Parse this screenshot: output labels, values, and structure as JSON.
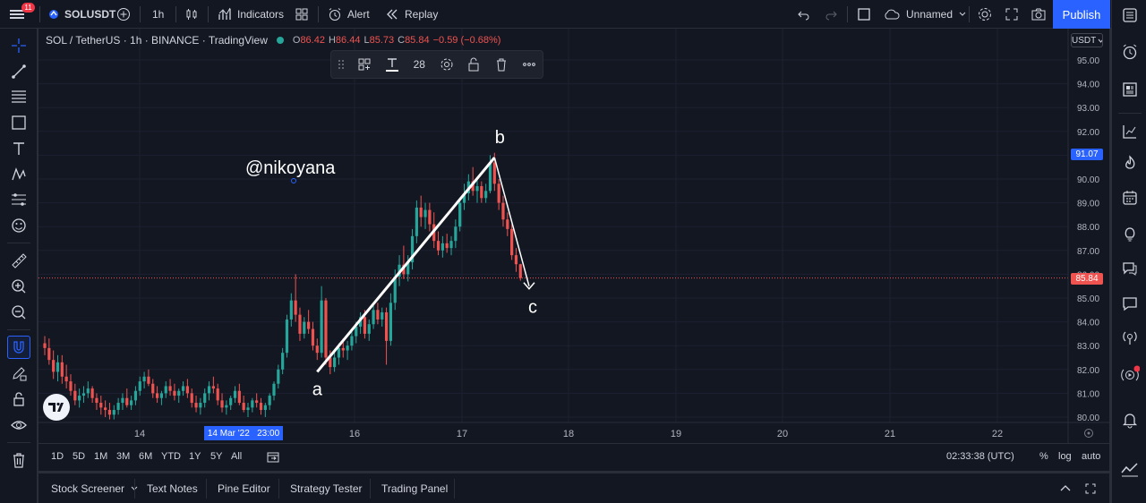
{
  "header": {
    "menu_badge": "11",
    "symbol": "SOLUSDT",
    "interval": "1h",
    "indicators_label": "Indicators",
    "alert_label": "Alert",
    "replay_label": "Replay",
    "layout_name": "Unnamed",
    "publish_label": "Publish"
  },
  "legend": {
    "title": "SOL / TetherUS · 1h · BINANCE · TradingView",
    "open_key": "O",
    "open": "86.42",
    "high_key": "H",
    "high": "86.44",
    "low_key": "L",
    "low": "85.73",
    "close_key": "C",
    "close": "85.84",
    "change": "−0.59 (−0.68%)"
  },
  "drawing_toolbar": {
    "font_size": "28"
  },
  "price_axis": {
    "currency": "USDT",
    "ticks": [
      "95.00",
      "94.00",
      "93.00",
      "92.00",
      "91.00",
      "90.00",
      "89.00",
      "88.00",
      "87.00",
      "86.00",
      "85.00",
      "84.00",
      "83.00",
      "82.00",
      "81.00",
      "80.00"
    ],
    "high_tag": "91.07",
    "last_tag": "85.84"
  },
  "time_axis": {
    "ticks": [
      "14",
      "16",
      "17",
      "18",
      "19",
      "20",
      "21",
      "22"
    ],
    "crosshair_label": "14 Mar '22   23:00"
  },
  "annotations": {
    "watermark_text": "@nikoyana",
    "label_a": "a",
    "label_b": "b",
    "label_c": "c"
  },
  "timeframes": [
    "1D",
    "5D",
    "1M",
    "3M",
    "6M",
    "YTD",
    "1Y",
    "5Y",
    "All"
  ],
  "clock": "02:33:38 (UTC)",
  "scale_options": {
    "percent": "%",
    "log": "log",
    "auto": "auto"
  },
  "bottom_tabs": [
    "Stock Screener",
    "Text Notes",
    "Pine Editor",
    "Strategy Tester",
    "Trading Panel"
  ],
  "colors": {
    "up": "#26a69a",
    "down": "#ef5350",
    "accent": "#2962ff",
    "background": "#131722"
  },
  "chart_data": {
    "type": "candlestick",
    "symbol": "SOLUSDT",
    "interval": "1h",
    "ylim": [
      79.8,
      95.5
    ],
    "candles": [
      [
        83.1,
        83.4,
        82.6,
        82.9
      ],
      [
        82.9,
        83.3,
        82.2,
        82.4
      ],
      [
        82.4,
        82.8,
        81.6,
        81.9
      ],
      [
        81.9,
        82.6,
        81.5,
        82.3
      ],
      [
        82.3,
        82.6,
        81.4,
        81.7
      ],
      [
        81.7,
        82.2,
        81.2,
        81.5
      ],
      [
        81.5,
        81.8,
        80.9,
        81.1
      ],
      [
        81.1,
        81.4,
        80.5,
        80.7
      ],
      [
        80.7,
        81.2,
        80.4,
        80.9
      ],
      [
        80.9,
        81.3,
        80.6,
        81.0
      ],
      [
        81.0,
        81.5,
        80.8,
        81.2
      ],
      [
        81.2,
        81.3,
        80.6,
        80.8
      ],
      [
        80.8,
        81.0,
        80.3,
        80.6
      ],
      [
        80.6,
        80.9,
        80.1,
        80.4
      ],
      [
        80.4,
        80.7,
        80.0,
        80.3
      ],
      [
        80.3,
        80.6,
        79.9,
        80.1
      ],
      [
        80.1,
        80.5,
        79.9,
        80.3
      ],
      [
        80.3,
        80.8,
        80.1,
        80.6
      ],
      [
        80.6,
        81.0,
        80.3,
        80.8
      ],
      [
        80.8,
        81.2,
        80.4,
        80.5
      ],
      [
        80.5,
        80.9,
        80.3,
        80.7
      ],
      [
        80.7,
        81.3,
        80.5,
        81.1
      ],
      [
        81.1,
        81.7,
        80.9,
        81.5
      ],
      [
        81.5,
        81.9,
        81.2,
        81.7
      ],
      [
        81.7,
        82.0,
        81.3,
        81.4
      ],
      [
        81.4,
        81.6,
        80.8,
        81.0
      ],
      [
        81.0,
        81.3,
        80.6,
        80.8
      ],
      [
        80.8,
        81.1,
        80.5,
        81.0
      ],
      [
        81.0,
        81.5,
        80.8,
        81.3
      ],
      [
        81.3,
        81.6,
        80.9,
        81.1
      ],
      [
        81.1,
        81.4,
        80.7,
        80.9
      ],
      [
        80.9,
        81.2,
        80.6,
        81.1
      ],
      [
        81.1,
        81.5,
        80.9,
        81.3
      ],
      [
        81.3,
        81.6,
        80.8,
        81.0
      ],
      [
        81.0,
        81.2,
        80.4,
        80.6
      ],
      [
        80.6,
        80.9,
        80.2,
        80.4
      ],
      [
        80.4,
        80.8,
        80.1,
        80.6
      ],
      [
        80.6,
        81.2,
        80.4,
        81.0
      ],
      [
        81.0,
        81.5,
        80.7,
        81.3
      ],
      [
        81.3,
        81.7,
        81.0,
        81.2
      ],
      [
        81.2,
        81.4,
        80.5,
        80.7
      ],
      [
        80.7,
        81.0,
        80.2,
        80.4
      ],
      [
        80.4,
        80.7,
        80.1,
        80.5
      ],
      [
        80.5,
        80.9,
        80.3,
        80.8
      ],
      [
        80.8,
        81.3,
        80.6,
        81.1
      ],
      [
        81.1,
        81.4,
        80.5,
        80.6
      ],
      [
        80.6,
        80.9,
        80.2,
        80.3
      ],
      [
        80.3,
        80.6,
        80.0,
        80.4
      ],
      [
        80.4,
        80.8,
        80.2,
        80.7
      ],
      [
        80.7,
        81.0,
        80.4,
        80.6
      ],
      [
        80.6,
        80.8,
        80.1,
        80.3
      ],
      [
        80.3,
        80.6,
        80.0,
        80.5
      ],
      [
        80.5,
        81.0,
        80.3,
        80.9
      ],
      [
        80.9,
        81.5,
        80.7,
        81.4
      ],
      [
        81.4,
        82.2,
        81.2,
        82.0
      ],
      [
        82.0,
        82.9,
        81.8,
        82.7
      ],
      [
        82.7,
        84.3,
        82.5,
        84.1
      ],
      [
        84.1,
        85.2,
        83.8,
        84.9
      ],
      [
        84.9,
        86.0,
        84.0,
        84.3
      ],
      [
        84.3,
        84.6,
        83.2,
        83.5
      ],
      [
        83.5,
        84.2,
        83.3,
        84.0
      ],
      [
        84.0,
        84.5,
        83.5,
        83.7
      ],
      [
        83.7,
        84.0,
        82.8,
        83.0
      ],
      [
        83.0,
        83.3,
        82.4,
        82.7
      ],
      [
        82.7,
        85.5,
        82.5,
        84.9
      ],
      [
        84.9,
        85.0,
        82.2,
        82.5
      ],
      [
        82.5,
        82.8,
        81.8,
        82.1
      ],
      [
        82.1,
        82.8,
        81.9,
        82.5
      ],
      [
        82.5,
        83.1,
        82.2,
        82.9
      ],
      [
        82.9,
        83.3,
        82.5,
        82.8
      ],
      [
        82.8,
        83.2,
        82.4,
        83.0
      ],
      [
        83.0,
        83.6,
        82.8,
        83.4
      ],
      [
        83.4,
        84.0,
        83.1,
        83.8
      ],
      [
        83.8,
        84.4,
        83.5,
        84.2
      ],
      [
        84.2,
        84.5,
        83.3,
        83.5
      ],
      [
        83.5,
        84.1,
        83.2,
        83.9
      ],
      [
        83.9,
        84.7,
        83.7,
        84.5
      ],
      [
        84.5,
        84.8,
        83.9,
        84.1
      ],
      [
        84.1,
        84.6,
        83.8,
        84.4
      ],
      [
        84.4,
        84.6,
        82.2,
        83.2
      ],
      [
        83.2,
        85.2,
        83.0,
        84.8
      ],
      [
        84.8,
        86.2,
        84.5,
        85.9
      ],
      [
        85.9,
        86.8,
        85.5,
        86.4
      ],
      [
        86.4,
        87.2,
        85.8,
        86.0
      ],
      [
        86.0,
        86.8,
        85.7,
        86.5
      ],
      [
        86.5,
        87.9,
        86.2,
        87.6
      ],
      [
        87.6,
        89.1,
        87.3,
        88.8
      ],
      [
        88.8,
        89.3,
        88.0,
        88.4
      ],
      [
        88.4,
        89.0,
        87.9,
        88.7
      ],
      [
        88.7,
        89.0,
        87.8,
        88.1
      ],
      [
        88.1,
        88.6,
        87.1,
        87.4
      ],
      [
        87.4,
        87.8,
        86.8,
        87.0
      ],
      [
        87.0,
        87.6,
        86.7,
        87.3
      ],
      [
        87.3,
        87.7,
        86.9,
        87.1
      ],
      [
        87.1,
        87.6,
        86.8,
        87.4
      ],
      [
        87.4,
        88.3,
        87.1,
        88.0
      ],
      [
        88.0,
        89.2,
        87.8,
        89.0
      ],
      [
        89.0,
        89.8,
        88.7,
        89.4
      ],
      [
        89.4,
        90.2,
        89.1,
        89.9
      ],
      [
        89.9,
        90.5,
        89.3,
        89.5
      ],
      [
        89.5,
        90.0,
        89.0,
        89.7
      ],
      [
        89.7,
        89.9,
        89.0,
        89.2
      ],
      [
        89.2,
        89.8,
        89.0,
        89.5
      ],
      [
        89.5,
        91.0,
        89.4,
        90.7
      ],
      [
        90.7,
        91.1,
        89.5,
        89.8
      ],
      [
        89.8,
        90.0,
        88.7,
        89.0
      ],
      [
        89.0,
        89.3,
        88.0,
        88.3
      ],
      [
        88.3,
        88.6,
        87.6,
        87.9
      ],
      [
        87.9,
        88.1,
        86.6,
        86.8
      ],
      [
        86.8,
        87.1,
        86.1,
        86.42
      ],
      [
        86.42,
        86.44,
        85.73,
        85.84
      ]
    ],
    "wave_points": [
      {
        "label": "a",
        "index": 63,
        "price": 81.9
      },
      {
        "label": "b",
        "index": 104,
        "price": 90.9
      },
      {
        "label": "c",
        "index": 112,
        "price": 85.5
      }
    ],
    "last_price": 85.84
  }
}
